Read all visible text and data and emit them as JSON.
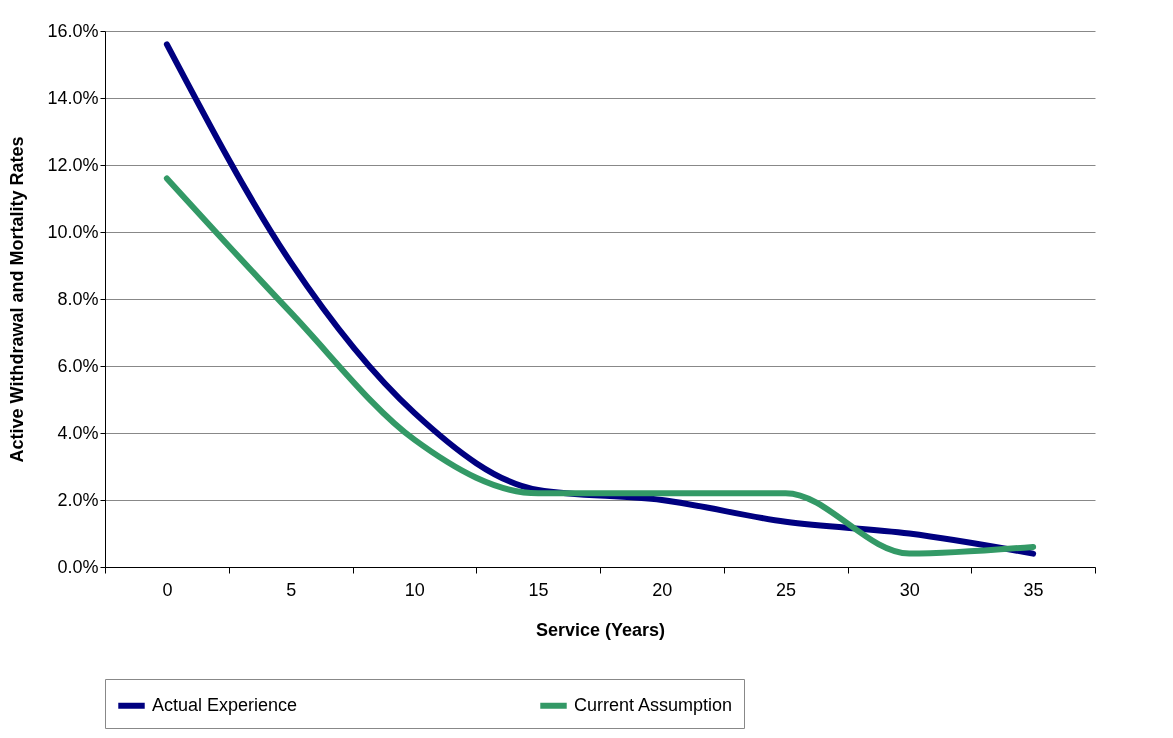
{
  "chart_data": {
    "type": "line",
    "xlabel": "Service (Years)",
    "ylabel": "Active Withdrawal and Mortality Rates",
    "categories": [
      "0",
      "5",
      "10",
      "15",
      "20",
      "25",
      "30",
      "35"
    ],
    "series": [
      {
        "name": "Actual Experience",
        "color": "#000080",
        "values": [
          15.6,
          9.1,
          4.6,
          2.3,
          2.0,
          1.35,
          1.0,
          0.4
        ]
      },
      {
        "name": "Current Assumption",
        "color": "#339966",
        "values": [
          11.6,
          7.6,
          3.8,
          2.2,
          2.2,
          2.2,
          0.4,
          0.6
        ]
      }
    ],
    "ylim": [
      0,
      16
    ],
    "yticks": [
      {
        "value": 0,
        "label": "0.0%"
      },
      {
        "value": 2,
        "label": "2.0%"
      },
      {
        "value": 4,
        "label": "4.0%"
      },
      {
        "value": 6,
        "label": "6.0%"
      },
      {
        "value": 8,
        "label": "8.0%"
      },
      {
        "value": 10,
        "label": "10.0%"
      },
      {
        "value": 12,
        "label": "12.0%"
      },
      {
        "value": 14,
        "label": "14.0%"
      },
      {
        "value": 16,
        "label": "16.0%"
      }
    ],
    "grid": "y",
    "legend": "bottom",
    "marker": "none",
    "line_style": "solid"
  }
}
